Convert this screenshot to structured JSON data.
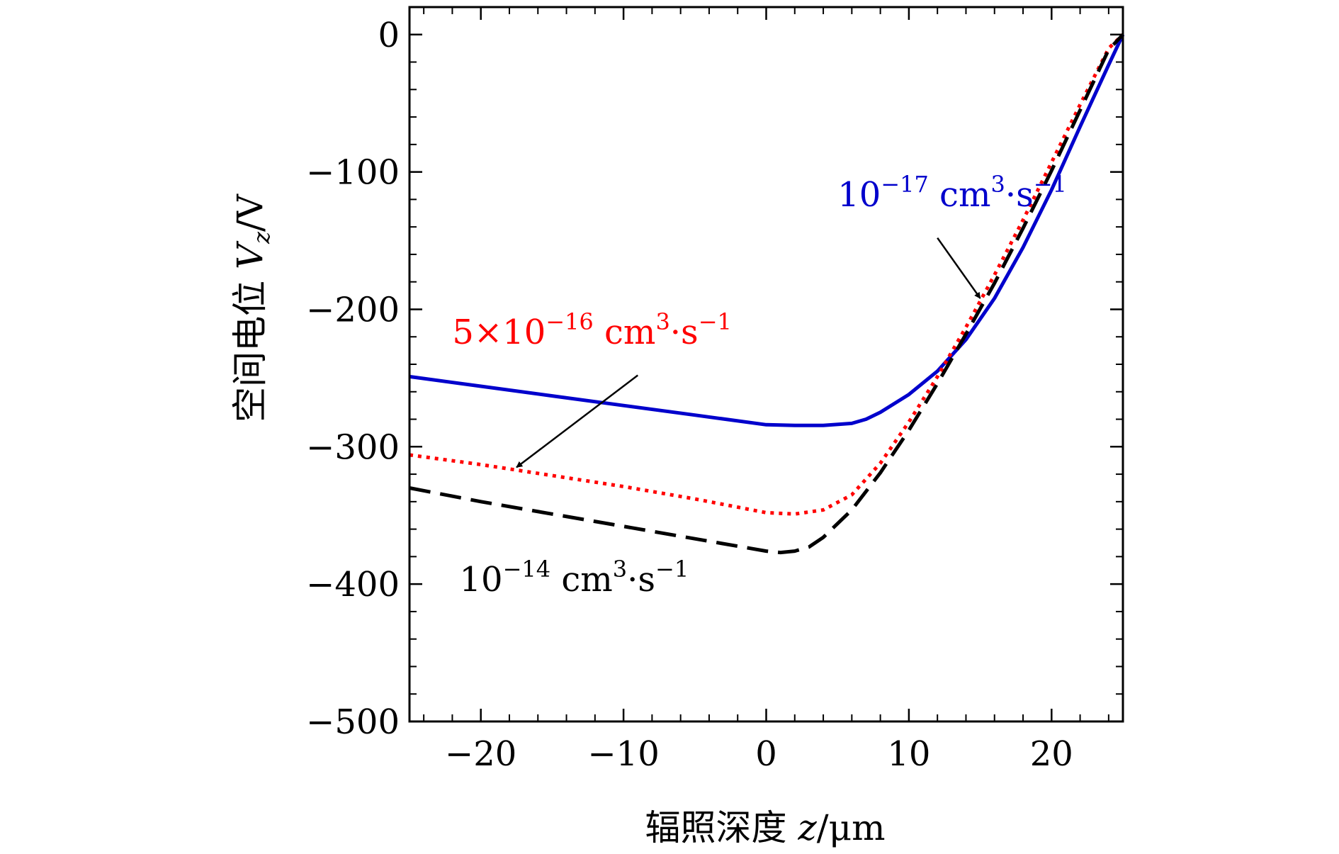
{
  "chart_data": {
    "type": "line",
    "xlabel": "辐照深度 z/μm",
    "ylabel": "空间电位 V_z/V",
    "xlabel_prefix": "辐照深度",
    "xlabel_var": "z",
    "xlabel_unit": "/μm",
    "ylabel_prefix": "空间电位",
    "ylabel_var": "V",
    "ylabel_sub": "z",
    "ylabel_unit": "/V",
    "xlim": [
      -25,
      25
    ],
    "ylim": [
      -500,
      20
    ],
    "xticks": [
      {
        "value": -20,
        "label": "−20"
      },
      {
        "value": -10,
        "label": "−10"
      },
      {
        "value": 0,
        "label": "0"
      },
      {
        "value": 10,
        "label": "10"
      },
      {
        "value": 20,
        "label": "20"
      }
    ],
    "yticks": [
      {
        "value": 0,
        "label": "0"
      },
      {
        "value": -100,
        "label": "−100"
      },
      {
        "value": -200,
        "label": "−200"
      },
      {
        "value": -300,
        "label": "−300"
      },
      {
        "value": -400,
        "label": "−400"
      },
      {
        "value": -500,
        "label": "−500"
      }
    ],
    "grid": false,
    "series": [
      {
        "name": "10⁻¹⁷ cm³·s⁻¹",
        "label": {
          "mantissa": "",
          "exp": "−17"
        },
        "color": "#0000cc",
        "style": "solid",
        "x": [
          -25,
          -20,
          -15,
          -10,
          -5,
          0,
          2,
          4,
          6,
          7,
          8,
          10,
          12,
          14,
          16,
          18,
          20,
          22,
          24,
          25
        ],
        "y": [
          -249,
          -256,
          -263,
          -270,
          -277,
          -284,
          -284.5,
          -284.5,
          -283,
          -280,
          -275,
          -262,
          -245,
          -222,
          -192,
          -155,
          -113,
          -67,
          -22,
          0
        ]
      },
      {
        "name": "5×10⁻¹⁶ cm³·s⁻¹",
        "label": {
          "mantissa": "5×",
          "exp": "−16"
        },
        "color": "#ff0000",
        "style": "dotted",
        "x": [
          -25,
          -20,
          -15,
          -10,
          -5,
          -2,
          0,
          2,
          4,
          6,
          8,
          10,
          12,
          14,
          16,
          18,
          20,
          22,
          24,
          25
        ],
        "y": [
          -306,
          -313,
          -321,
          -329,
          -338,
          -344,
          -348,
          -349,
          -346,
          -335,
          -312,
          -282,
          -249,
          -213,
          -175,
          -135,
          -93,
          -51,
          -10,
          0
        ]
      },
      {
        "name": "10⁻¹⁴ cm³·s⁻¹",
        "label": {
          "mantissa": "",
          "exp": "−14"
        },
        "color": "#000000",
        "style": "dashed",
        "x": [
          -25,
          -20,
          -15,
          -10,
          -5,
          0,
          1,
          2,
          3,
          4,
          6,
          8,
          10,
          12,
          14,
          16,
          18,
          20,
          22,
          24,
          25
        ],
        "y": [
          -330,
          -340,
          -349,
          -358,
          -367,
          -376,
          -377,
          -376,
          -373,
          -366,
          -346,
          -319,
          -288,
          -254,
          -218,
          -181,
          -141,
          -99,
          -55,
          -11,
          0
        ]
      }
    ],
    "annotations": [
      {
        "series": 0,
        "text_at": [
          5,
          -125
        ],
        "arrow_from": [
          12,
          -148
        ],
        "arrow_to": [
          15,
          -192
        ]
      },
      {
        "series": 1,
        "text_at": [
          -22,
          -225
        ],
        "arrow_from": [
          -9,
          -248
        ],
        "arrow_to": [
          -17.5,
          -315
        ]
      },
      {
        "series": 2,
        "text_at": [
          -21.5,
          -405
        ]
      }
    ]
  }
}
